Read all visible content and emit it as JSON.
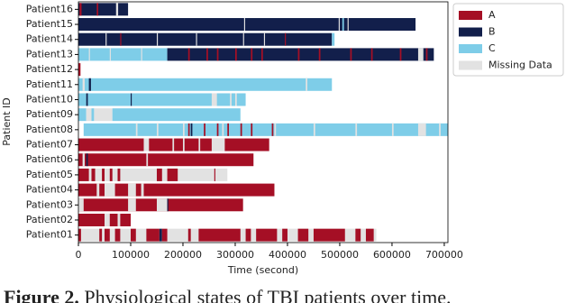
{
  "chart_data": {
    "type": "timeline",
    "ylabel": "Patient ID",
    "xlabel": "Time (second)",
    "xlim": [
      0,
      707000
    ],
    "xticks": [
      0,
      100000,
      200000,
      300000,
      400000,
      500000,
      600000,
      700000
    ],
    "legend": "upper right",
    "series": [
      {
        "name": "A",
        "color": "#a50f25"
      },
      {
        "name": "B",
        "color": "#121f4b"
      },
      {
        "name": "C",
        "color": "#7ecde8"
      },
      {
        "name": "Missing Data",
        "color": "#e2e2e2"
      }
    ],
    "categories": [
      "Patient01",
      "Patient02",
      "Patient03",
      "Patient04",
      "Patient05",
      "Patient06",
      "Patient07",
      "Patient08",
      "Patient09",
      "Patient10",
      "Patient11",
      "Patient12",
      "Patient13",
      "Patient14",
      "Patient15",
      "Patient16"
    ],
    "rows": [
      {
        "segments": [
          [
            0,
            570000,
            3
          ],
          [
            0,
            5000,
            0
          ],
          [
            40000,
            45000,
            0
          ],
          [
            50000,
            60000,
            0
          ],
          [
            70000,
            80000,
            0
          ],
          [
            100000,
            110000,
            0
          ],
          [
            130000,
            155000,
            0
          ],
          [
            155000,
            160000,
            1
          ],
          [
            160000,
            170000,
            0
          ],
          [
            210000,
            215000,
            0
          ],
          [
            230000,
            310000,
            0
          ],
          [
            320000,
            330000,
            0
          ],
          [
            340000,
            380000,
            0
          ],
          [
            390000,
            400000,
            0
          ],
          [
            420000,
            440000,
            0
          ],
          [
            450000,
            510000,
            0
          ],
          [
            530000,
            540000,
            0
          ],
          [
            550000,
            565000,
            0
          ]
        ]
      },
      {
        "segments": [
          [
            0,
            100000,
            0
          ],
          [
            50000,
            60000,
            3
          ],
          [
            75000,
            80000,
            3
          ]
        ]
      },
      {
        "segments": [
          [
            0,
            315000,
            0
          ],
          [
            0,
            10000,
            3
          ],
          [
            95000,
            110000,
            3
          ],
          [
            150000,
            170000,
            3
          ],
          [
            170000,
            172000,
            1
          ]
        ]
      },
      {
        "segments": [
          [
            0,
            375000,
            0
          ],
          [
            35000,
            40000,
            3
          ],
          [
            50000,
            70000,
            3
          ],
          [
            95000,
            110000,
            3
          ],
          [
            120000,
            125000,
            3
          ]
        ]
      },
      {
        "segments": [
          [
            0,
            285000,
            3
          ],
          [
            0,
            20000,
            0
          ],
          [
            25000,
            32000,
            0
          ],
          [
            45000,
            50000,
            0
          ],
          [
            60000,
            65000,
            0
          ],
          [
            75000,
            80000,
            0
          ],
          [
            150000,
            160000,
            0
          ],
          [
            170000,
            190000,
            0
          ],
          [
            260000,
            262000,
            0
          ]
        ]
      },
      {
        "segments": [
          [
            0,
            335000,
            0
          ],
          [
            8000,
            12000,
            3
          ],
          [
            15000,
            18000,
            1
          ],
          [
            130000,
            133000,
            3
          ]
        ]
      },
      {
        "segments": [
          [
            0,
            125000,
            0
          ],
          [
            125000,
            135000,
            3
          ],
          [
            135000,
            365000,
            0
          ],
          [
            180000,
            183000,
            3
          ],
          [
            200000,
            203000,
            3
          ],
          [
            230000,
            233000,
            3
          ],
          [
            255000,
            280000,
            3
          ]
        ]
      },
      {
        "segments": [
          [
            10000,
            707000,
            2
          ],
          [
            110000,
            113000,
            3
          ],
          [
            150000,
            153000,
            3
          ],
          [
            200000,
            203000,
            3
          ],
          [
            210000,
            213000,
            0
          ],
          [
            215000,
            218000,
            1
          ],
          [
            240000,
            243000,
            0
          ],
          [
            265000,
            268000,
            0
          ],
          [
            275000,
            278000,
            3
          ],
          [
            285000,
            288000,
            0
          ],
          [
            310000,
            313000,
            0
          ],
          [
            330000,
            333000,
            0
          ],
          [
            370000,
            373000,
            0
          ],
          [
            375000,
            378000,
            3
          ],
          [
            450000,
            453000,
            3
          ],
          [
            530000,
            533000,
            3
          ],
          [
            600000,
            603000,
            3
          ],
          [
            650000,
            665000,
            3
          ],
          [
            690000,
            693000,
            3
          ]
        ]
      },
      {
        "segments": [
          [
            0,
            15000,
            2
          ],
          [
            15000,
            25000,
            3
          ],
          [
            25000,
            30000,
            2
          ],
          [
            30000,
            65000,
            3
          ],
          [
            65000,
            310000,
            2
          ]
        ]
      },
      {
        "segments": [
          [
            0,
            320000,
            2
          ],
          [
            15000,
            18000,
            1
          ],
          [
            100000,
            102000,
            1
          ],
          [
            255000,
            265000,
            3
          ],
          [
            290000,
            293000,
            3
          ],
          [
            300000,
            303000,
            3
          ]
        ]
      },
      {
        "segments": [
          [
            0,
            485000,
            2
          ],
          [
            8000,
            12000,
            3
          ],
          [
            20000,
            24000,
            1
          ],
          [
            435000,
            438000,
            3
          ]
        ]
      },
      {
        "segments": [
          [
            0,
            4000,
            0
          ]
        ]
      },
      {
        "segments": [
          [
            0,
            170000,
            2
          ],
          [
            20000,
            22000,
            3
          ],
          [
            60000,
            62000,
            3
          ],
          [
            120000,
            122000,
            3
          ],
          [
            170000,
            680000,
            1
          ],
          [
            210000,
            213000,
            0
          ],
          [
            245000,
            248000,
            0
          ],
          [
            265000,
            268000,
            0
          ],
          [
            300000,
            303000,
            0
          ],
          [
            330000,
            333000,
            0
          ],
          [
            350000,
            353000,
            0
          ],
          [
            420000,
            423000,
            0
          ],
          [
            460000,
            463000,
            0
          ],
          [
            520000,
            523000,
            0
          ],
          [
            560000,
            563000,
            0
          ],
          [
            615000,
            618000,
            0
          ],
          [
            650000,
            660000,
            3
          ],
          [
            665000,
            668000,
            0
          ]
        ]
      },
      {
        "segments": [
          [
            0,
            485000,
            1
          ],
          [
            52000,
            54000,
            3
          ],
          [
            80000,
            82000,
            0
          ],
          [
            150000,
            152000,
            3
          ],
          [
            225000,
            227000,
            3
          ],
          [
            315000,
            317000,
            3
          ],
          [
            355000,
            357000,
            3
          ],
          [
            395000,
            397000,
            0
          ],
          [
            485000,
            490000,
            2
          ]
        ]
      },
      {
        "segments": [
          [
            0,
            645000,
            1
          ],
          [
            317000,
            319000,
            3
          ],
          [
            498000,
            500000,
            3
          ],
          [
            505000,
            508000,
            2
          ],
          [
            515000,
            517000,
            3
          ]
        ]
      },
      {
        "segments": [
          [
            0,
            95000,
            1
          ],
          [
            2000,
            6000,
            0
          ],
          [
            35000,
            38000,
            0
          ],
          [
            72000,
            76000,
            3
          ]
        ]
      }
    ],
    "caption_label": "Figure 2.",
    "caption": "Physiological states of TBI patients over time."
  }
}
